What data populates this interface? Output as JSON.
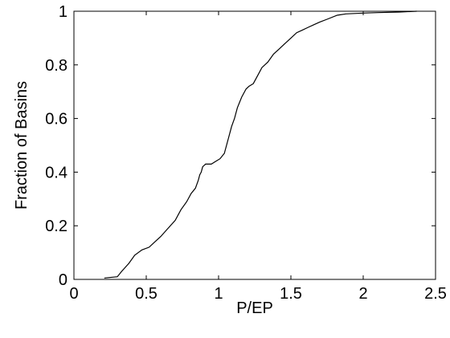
{
  "chart_data": {
    "type": "line",
    "title": "",
    "xlabel": "P/EP",
    "ylabel": "Fraction of Basins",
    "xlim": [
      0,
      2.5
    ],
    "ylim": [
      0,
      1
    ],
    "xticks": [
      0,
      0.5,
      1,
      1.5,
      2,
      2.5
    ],
    "yticks": [
      0,
      0.2,
      0.4,
      0.6,
      0.8,
      1
    ],
    "xtick_labels": [
      "0",
      "0.5",
      "1",
      "1.5",
      "2",
      "2.5"
    ],
    "ytick_labels": [
      "0",
      "0.2",
      "0.4",
      "0.6",
      "0.8",
      "1"
    ],
    "grid": false,
    "line_color": "#000000",
    "series": [
      {
        "x": [
          0.21,
          0.3,
          0.33,
          0.38,
          0.42,
          0.47,
          0.52,
          0.56,
          0.6,
          0.65,
          0.7,
          0.74,
          0.78,
          0.81,
          0.84,
          0.86,
          0.87,
          0.88,
          0.89,
          0.91,
          0.95,
          0.98,
          1.01,
          1.04,
          1.07,
          1.09,
          1.11,
          1.13,
          1.16,
          1.19,
          1.21,
          1.24,
          1.27,
          1.3,
          1.34,
          1.38,
          1.42,
          1.46,
          1.5,
          1.54,
          1.58,
          1.62,
          1.66,
          1.7,
          1.75,
          1.82,
          1.88,
          2.0,
          2.1,
          2.25,
          2.37
        ],
        "y": [
          0.005,
          0.01,
          0.03,
          0.06,
          0.09,
          0.11,
          0.12,
          0.14,
          0.16,
          0.19,
          0.22,
          0.26,
          0.29,
          0.32,
          0.34,
          0.37,
          0.39,
          0.4,
          0.42,
          0.43,
          0.43,
          0.44,
          0.45,
          0.47,
          0.53,
          0.57,
          0.6,
          0.64,
          0.68,
          0.71,
          0.72,
          0.73,
          0.76,
          0.79,
          0.81,
          0.84,
          0.86,
          0.88,
          0.9,
          0.92,
          0.93,
          0.94,
          0.95,
          0.96,
          0.97,
          0.985,
          0.99,
          0.993,
          0.995,
          0.997,
          1.0
        ]
      }
    ]
  }
}
